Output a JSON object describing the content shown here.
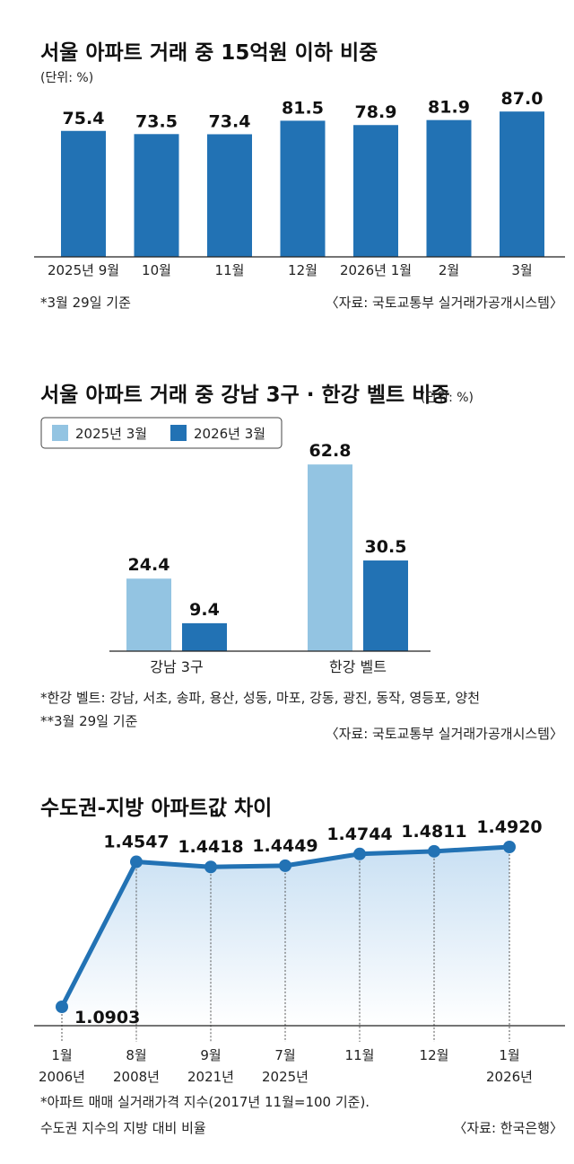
{
  "chart_data": [
    {
      "type": "bar",
      "title": "서울 아파트 거래 중 15억원 이하 비중",
      "unit_note": "(단위: %)",
      "categories": [
        "2025년 9월",
        "10월",
        "11월",
        "12월",
        "2026년 1월",
        "2월",
        "3월"
      ],
      "values": [
        75.4,
        73.5,
        73.4,
        81.5,
        78.9,
        81.9,
        87.0
      ],
      "value_labels": [
        "75.4",
        "73.5",
        "73.4",
        "81.5",
        "78.9",
        "81.9",
        "87.0"
      ],
      "bar_color": "#2272b4",
      "ylim": [
        0,
        100
      ],
      "footnote": "*3월 29일 기준",
      "source": "〈자료: 국토교통부 실거래가공개시스템〉"
    },
    {
      "type": "bar",
      "title": "서울 아파트 거래 중 강남 3구 · 한강 벨트 비중",
      "unit_note": "(단위: %)",
      "categories": [
        "강남 3구",
        "한강 벨트"
      ],
      "series": [
        {
          "name": "2025년 3월",
          "values": [
            24.4,
            62.8
          ],
          "labels": [
            "24.4",
            "62.8"
          ],
          "color": "#93c4e2"
        },
        {
          "name": "2026년 3월",
          "values": [
            9.4,
            30.5
          ],
          "labels": [
            "9.4",
            "30.5"
          ],
          "color": "#2272b4"
        }
      ],
      "ylim": [
        0,
        70
      ],
      "legend_position": "top-left",
      "footnotes": [
        "*한강 벨트: 강남, 서초, 송파, 용산, 성동, 마포, 강동, 광진, 동작, 영등포, 양천",
        "**3월 29일 기준"
      ],
      "source": "〈자료: 국토교통부 실거래가공개시스템〉"
    },
    {
      "type": "line",
      "title": "수도권-지방 아파트값 차이",
      "x": [
        {
          "m": "1월",
          "y": "2006년"
        },
        {
          "m": "8월",
          "y": "2008년"
        },
        {
          "m": "9월",
          "y": "2021년"
        },
        {
          "m": "7월",
          "y": "2025년"
        },
        {
          "m": "11월",
          "y": ""
        },
        {
          "m": "12월",
          "y": ""
        },
        {
          "m": "1월",
          "y": "2026년"
        }
      ],
      "values": [
        1.0903,
        1.4547,
        1.4418,
        1.4449,
        1.4744,
        1.4811,
        1.492
      ],
      "value_labels": [
        "1.0903",
        "1.4547",
        "1.4418",
        "1.4449",
        "1.4744",
        "1.4811",
        "1.4920"
      ],
      "line_color": "#2272b4",
      "area_fill": "gradient light blue",
      "ylim": [
        1.06,
        1.52
      ],
      "footnotes": [
        "*아파트 매매 실거래가격 지수(2017년 11월=100 기준).",
        "수도권 지수의 지방 대비 비율"
      ],
      "source": "〈자료: 한국은행〉"
    }
  ]
}
